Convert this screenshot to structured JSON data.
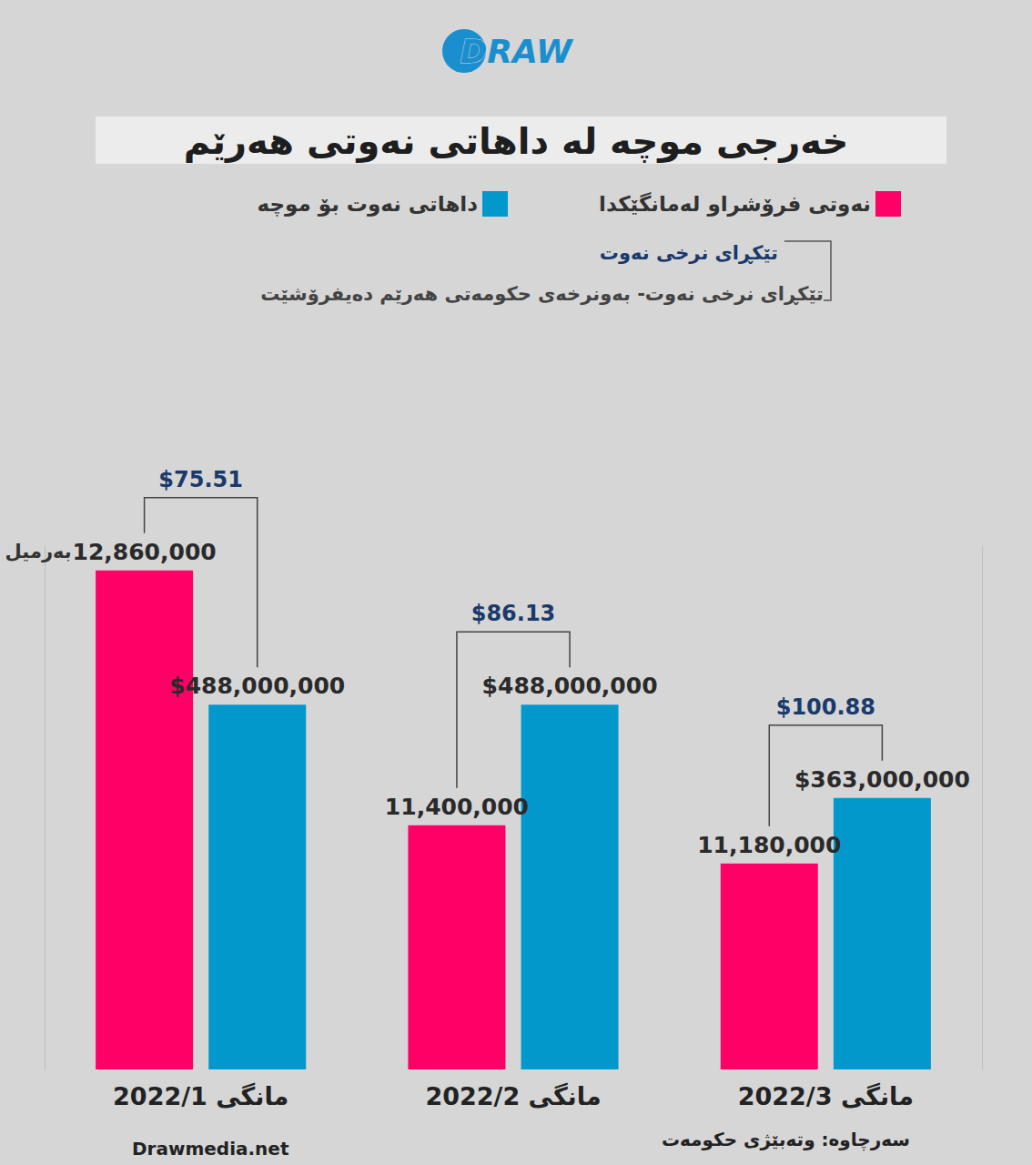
{
  "chart_data": {
    "type": "bar",
    "logo": "DRAW",
    "title": "خەرجی موچە لە داهاتی نەوتی هەرێم",
    "categories": [
      "مانگی 2022/1",
      "مانگی 2022/2",
      "مانگی 2022/3"
    ],
    "series": [
      {
        "name": "نەوتی فرۆشراو لەمانگێکدا",
        "color": "#ff0066",
        "axis": "y",
        "values": [
          12860000,
          11400000,
          11180000
        ],
        "value_labels": [
          "12,860,000",
          "11,400,000",
          "11,180,000"
        ],
        "unit_label": "بەرمیل"
      },
      {
        "name": "داهاتی نەوت بۆ موچە",
        "color": "#0398cc",
        "axis": "y2",
        "values": [
          488000000,
          488000000,
          363000000
        ],
        "value_labels": [
          "$488,000,000",
          "$488,000,000",
          "$363,000,000"
        ]
      }
    ],
    "price_legend": {
      "label": "تێکڕای نرخی نەوت",
      "description": "تێکڕای نرخی نەوت- بەونرخەی حکومەتی هەرێم دەیفرۆشێت"
    },
    "price_labels": [
      "$75.51",
      "$86.13",
      "$100.88"
    ],
    "ylim": [
      10000000,
      13000000
    ],
    "y2lim": [
      0,
      700000000
    ],
    "tick_labels": false,
    "grid": false,
    "data_labels": true,
    "legend": "top",
    "website": "Drawmedia.net",
    "source": "سەرچاوە: وتەبێژی حکومەت"
  }
}
